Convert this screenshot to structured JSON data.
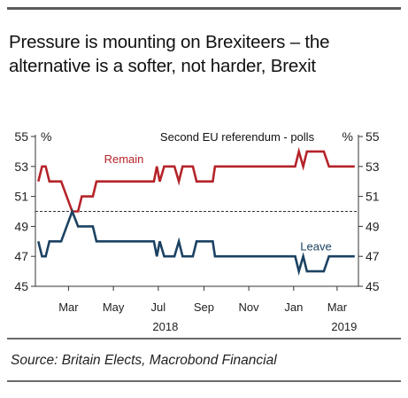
{
  "header": {
    "title": "Pressure is mounting on Brexiteers – the alternative is a softer, not harder, Brexit"
  },
  "footer": {
    "source": "Source: Britain Elects, Macrobond Financial"
  },
  "colors": {
    "remain": "#b5242a",
    "leave": "#1c4263",
    "axis": "#333333"
  },
  "chart_data": {
    "type": "line",
    "title": "Second EU referendum - polls",
    "ylabel_left": "%",
    "ylabel_right": "%",
    "ylim": [
      45,
      55
    ],
    "yticks": [
      45,
      47,
      49,
      51,
      53,
      55
    ],
    "reference_line": 50,
    "x_range": [
      "2018-01-15",
      "2019-03-30"
    ],
    "x_ticks": [
      {
        "date": "2018-03-01",
        "label": "Mar"
      },
      {
        "date": "2018-05-01",
        "label": "May"
      },
      {
        "date": "2018-07-01",
        "label": "Jul"
      },
      {
        "date": "2018-09-01",
        "label": "Sep"
      },
      {
        "date": "2018-11-01",
        "label": "Nov"
      },
      {
        "date": "2019-01-01",
        "label": "Jan"
      },
      {
        "date": "2019-03-01",
        "label": "Mar"
      }
    ],
    "year_labels": [
      {
        "date": "2018-07-01",
        "label": "2018"
      },
      {
        "date": "2019-03-01",
        "label": "2019"
      }
    ],
    "series": [
      {
        "name": "Remain",
        "color": "#b5242a",
        "points": [
          [
            "2018-01-19",
            52
          ],
          [
            "2018-01-24",
            53
          ],
          [
            "2018-01-29",
            53
          ],
          [
            "2018-02-03",
            52
          ],
          [
            "2018-02-19",
            52
          ],
          [
            "2018-03-06",
            50
          ],
          [
            "2018-03-14",
            50
          ],
          [
            "2018-03-19",
            51
          ],
          [
            "2018-04-03",
            51
          ],
          [
            "2018-04-08",
            52
          ],
          [
            "2018-06-25",
            52
          ],
          [
            "2018-06-29",
            53
          ],
          [
            "2018-07-03",
            52
          ],
          [
            "2018-07-09",
            53
          ],
          [
            "2018-07-23",
            53
          ],
          [
            "2018-07-29",
            52
          ],
          [
            "2018-08-03",
            53
          ],
          [
            "2018-08-17",
            53
          ],
          [
            "2018-08-22",
            52
          ],
          [
            "2018-09-13",
            52
          ],
          [
            "2018-09-16",
            53
          ],
          [
            "2018-12-25",
            53
          ],
          [
            "2019-01-03",
            53
          ],
          [
            "2019-01-08",
            54
          ],
          [
            "2019-01-14",
            53
          ],
          [
            "2019-01-19",
            54
          ],
          [
            "2019-02-11",
            54
          ],
          [
            "2019-02-18",
            53
          ],
          [
            "2019-03-25",
            53
          ]
        ]
      },
      {
        "name": "Leave",
        "color": "#1c4263",
        "points": [
          [
            "2018-01-19",
            48
          ],
          [
            "2018-01-24",
            47
          ],
          [
            "2018-01-29",
            47
          ],
          [
            "2018-02-03",
            48
          ],
          [
            "2018-02-19",
            48
          ],
          [
            "2018-03-06",
            50
          ],
          [
            "2018-03-14",
            49
          ],
          [
            "2018-03-19",
            49
          ],
          [
            "2018-04-03",
            49
          ],
          [
            "2018-04-08",
            48
          ],
          [
            "2018-06-25",
            48
          ],
          [
            "2018-06-29",
            47
          ],
          [
            "2018-07-03",
            48
          ],
          [
            "2018-07-09",
            47
          ],
          [
            "2018-07-23",
            47
          ],
          [
            "2018-07-29",
            48
          ],
          [
            "2018-08-03",
            47
          ],
          [
            "2018-08-17",
            47
          ],
          [
            "2018-08-22",
            48
          ],
          [
            "2018-09-13",
            48
          ],
          [
            "2018-09-16",
            47
          ],
          [
            "2018-12-25",
            47
          ],
          [
            "2019-01-03",
            47
          ],
          [
            "2019-01-08",
            46
          ],
          [
            "2019-01-14",
            47
          ],
          [
            "2019-01-19",
            46
          ],
          [
            "2019-02-11",
            46
          ],
          [
            "2019-02-18",
            47
          ],
          [
            "2019-03-25",
            47
          ]
        ]
      }
    ]
  }
}
